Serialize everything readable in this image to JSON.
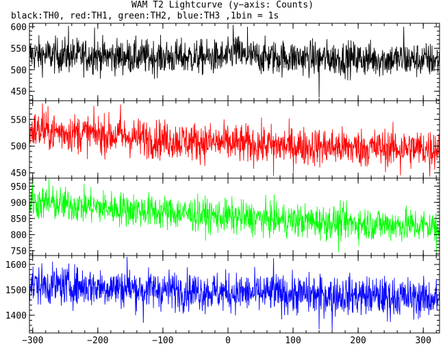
{
  "chart_data": {
    "title": "WAM T2 Lightcurve (y−axis: Counts)",
    "subtitle": "black:TH0, red:TH1, green:TH2, blue:TH3 ,1bin = 1s",
    "type": "line",
    "xlim": [
      -305,
      325
    ],
    "xticks": [
      -300,
      -200,
      -100,
      0,
      100,
      200,
      300
    ],
    "xtick_labels": [
      "−300",
      "−200",
      "−100",
      "0",
      "100",
      "200",
      "300"
    ],
    "grid": false,
    "panels": [
      {
        "name": "TH0",
        "color": "#000000",
        "ylim": [
          428,
          608
        ],
        "yticks": [
          450,
          500,
          550,
          600
        ],
        "base": [
          [
            -305,
            535
          ],
          [
            -150,
            530
          ],
          [
            0,
            528
          ],
          [
            10,
            545
          ],
          [
            25,
            530
          ],
          [
            325,
            522
          ]
        ],
        "noise": 20,
        "min": 432,
        "max": 605,
        "spikes": [
          [
            -245,
            602
          ],
          [
            -205,
            598
          ],
          [
            8,
            604
          ],
          [
            140,
            436
          ],
          [
            270,
            600
          ],
          [
            30,
            600
          ]
        ]
      },
      {
        "name": "TH1",
        "color": "#ff0000",
        "ylim": [
          440,
          585
        ],
        "yticks": [
          450,
          500,
          550
        ],
        "base": [
          [
            -305,
            530
          ],
          [
            -200,
            522
          ],
          [
            -100,
            512
          ],
          [
            0,
            505
          ],
          [
            100,
            500
          ],
          [
            200,
            497
          ],
          [
            325,
            495
          ]
        ],
        "noise": 18,
        "min": 443,
        "max": 582,
        "spikes": [
          [
            -285,
            580
          ],
          [
            -165,
            578
          ],
          [
            70,
            444
          ],
          [
            265,
            445
          ],
          [
            310,
            443
          ]
        ]
      },
      {
        "name": "TH2",
        "color": "#00ff00",
        "ylim": [
          735,
          975
        ],
        "yticks": [
          750,
          800,
          850,
          900,
          950
        ],
        "base": [
          [
            -305,
            900
          ],
          [
            -200,
            885
          ],
          [
            -100,
            870
          ],
          [
            0,
            855
          ],
          [
            100,
            843
          ],
          [
            200,
            835
          ],
          [
            325,
            825
          ]
        ],
        "noise": 26,
        "min": 738,
        "max": 972,
        "spikes": [
          [
            -300,
            970
          ],
          [
            -275,
            972
          ],
          [
            170,
            745
          ],
          [
            320,
            740
          ]
        ]
      },
      {
        "name": "TH3",
        "color": "#0000ff",
        "ylim": [
          1330,
          1635
        ],
        "yticks": [
          1400,
          1500,
          1600
        ],
        "base": [
          [
            -305,
            1520
          ],
          [
            -200,
            1512
          ],
          [
            -100,
            1500
          ],
          [
            0,
            1490
          ],
          [
            100,
            1482
          ],
          [
            200,
            1478
          ],
          [
            325,
            1465
          ]
        ],
        "noise": 38,
        "min": 1335,
        "max": 1630,
        "spikes": [
          [
            -155,
            1630
          ],
          [
            -130,
            1370
          ],
          [
            70,
            1625
          ],
          [
            160,
            1340
          ],
          [
            245,
            1375
          ],
          [
            140,
            1345
          ]
        ]
      }
    ]
  }
}
